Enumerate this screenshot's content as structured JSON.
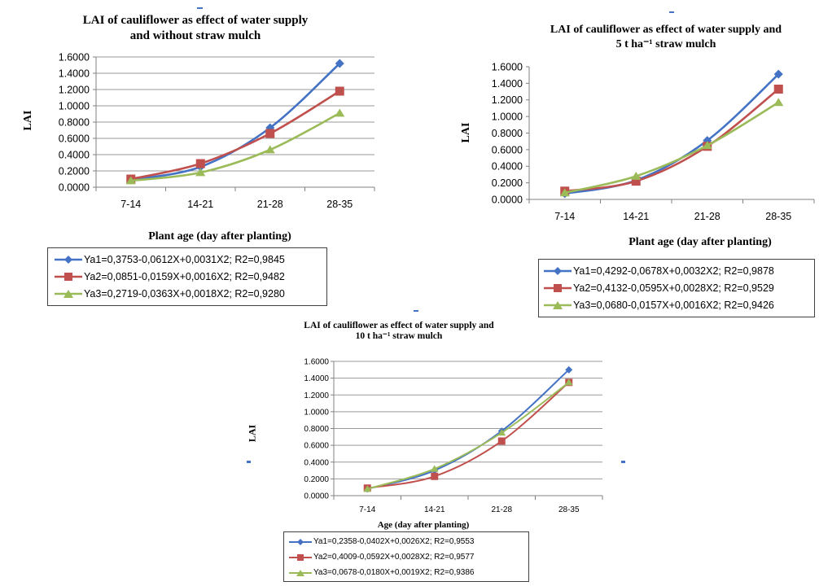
{
  "colors": {
    "series1": "#4472C4",
    "series2": "#C0504D",
    "series3": "#9BBB59",
    "axis": "#808080",
    "grid": "#9a9a9a",
    "text": "#000000"
  },
  "stray_marks_color": "#4472C4",
  "chart_data": [
    {
      "type": "line",
      "title_lines": [
        "LAI of cauliflower as effect of  water supply",
        "and without straw mulch"
      ],
      "xlabel": "Plant age (day after planting)",
      "ylabel": "LAI",
      "categories": [
        "7-14",
        "14-21",
        "21-28",
        "28-35"
      ],
      "ylim": [
        0,
        1.6
      ],
      "yticks": [
        "0.0000",
        "0.2000",
        "0.4000",
        "0.6000",
        "0.8000",
        "1.0000",
        "1.2000",
        "1.4000",
        "1.6000"
      ],
      "grid": true,
      "legend_position": "bottom",
      "series": [
        {
          "name": "Ya1=0,3753-0,0612X+0,0031X2;  R2=0,9845",
          "values": [
            0.09,
            0.25,
            0.73,
            1.52
          ],
          "marker": "diamond"
        },
        {
          "name": "Ya2=0,0851-0,0159X+0,0016X2;  R2=0,9482",
          "values": [
            0.1,
            0.29,
            0.66,
            1.18
          ],
          "marker": "square"
        },
        {
          "name": "Ya3=0,2719-0,0363X+0,0018X2;  R2=0,9280",
          "values": [
            0.08,
            0.18,
            0.46,
            0.91
          ],
          "marker": "triangle"
        }
      ]
    },
    {
      "type": "line",
      "title_lines": [
        "LAI of cauliflower as effect of water supply and",
        "5 t ha⁻¹ straw mulch"
      ],
      "xlabel": "Plant age (day after planting)",
      "ylabel": "LAI",
      "categories": [
        "7-14",
        "14-21",
        "21-28",
        "28-35"
      ],
      "ylim": [
        0,
        1.6
      ],
      "yticks": [
        "0.0000",
        "0.2000",
        "0.4000",
        "0.6000",
        "0.8000",
        "1.0000",
        "1.2000",
        "1.4000",
        "1.6000"
      ],
      "grid": false,
      "legend_position": "bottom",
      "series": [
        {
          "name": "Ya1=0,4292-0,0678X+0,0032X2;  R2=0,9878",
          "values": [
            0.07,
            0.23,
            0.71,
            1.51
          ],
          "marker": "diamond"
        },
        {
          "name": "Ya2=0,4132-0,0595X+0,0028X2;  R2=0,9529",
          "values": [
            0.1,
            0.22,
            0.64,
            1.33
          ],
          "marker": "square"
        },
        {
          "name": "Ya3=0,0680-0,0157X+0,0016X2;  R2=0,9426",
          "values": [
            0.08,
            0.28,
            0.65,
            1.17
          ],
          "marker": "triangle"
        }
      ]
    },
    {
      "type": "line",
      "title_lines": [
        "LAI of cauliflower as effect of water supply and",
        "10 t ha⁻¹ straw mulch"
      ],
      "xlabel": "Age (day after planting)",
      "ylabel": "LAI",
      "categories": [
        "7-14",
        "14-21",
        "21-28",
        "28-35"
      ],
      "ylim": [
        0,
        1.6
      ],
      "yticks": [
        "0.0000",
        "0.2000",
        "0.4000",
        "0.6000",
        "0.8000",
        "1.0000",
        "1.2000",
        "1.4000",
        "1.6000"
      ],
      "grid": true,
      "legend_position": "bottom",
      "series": [
        {
          "name": "Ya1=0,2358-0,0402X+0,0026X2;  R2=0,9553",
          "values": [
            0.08,
            0.3,
            0.77,
            1.5
          ],
          "marker": "diamond"
        },
        {
          "name": "Ya2=0,4009-0,0592X+0,0028X2;  R2=0,9577",
          "values": [
            0.09,
            0.23,
            0.65,
            1.35
          ],
          "marker": "square"
        },
        {
          "name": "Ya3=0,0678-0,0180X+0,0019X2;  R2=0,9386",
          "values": [
            0.08,
            0.32,
            0.75,
            1.35
          ],
          "marker": "triangle"
        }
      ]
    }
  ]
}
